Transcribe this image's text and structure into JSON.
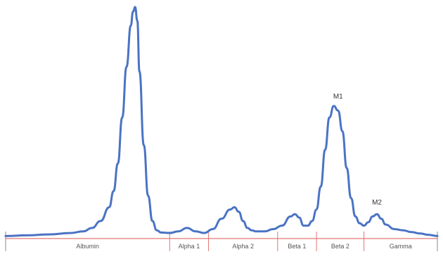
{
  "chart_data": {
    "type": "line",
    "title": "",
    "xlabel": "",
    "ylabel": "",
    "ylim": [
      0,
      100
    ],
    "grid": false,
    "legend": "none",
    "line_color": "#4a73c4",
    "baseline_color": "#e57373",
    "segments": [
      {
        "label": "Albumin",
        "start": 0.0,
        "end": 0.38
      },
      {
        "label": "Alpha 1",
        "start": 0.38,
        "end": 0.47
      },
      {
        "label": "Alpha 2",
        "start": 0.47,
        "end": 0.63
      },
      {
        "label": "Beta 1",
        "start": 0.63,
        "end": 0.72
      },
      {
        "label": "Beta 2",
        "start": 0.72,
        "end": 0.83
      },
      {
        "label": "Gamma",
        "start": 0.83,
        "end": 1.0
      }
    ],
    "peak_labels": [
      {
        "label": "M1",
        "x": 0.77,
        "y": 59
      },
      {
        "label": "M2",
        "x": 0.86,
        "y": 13
      }
    ],
    "series": [
      {
        "x": [
          0.0,
          0.05,
          0.1,
          0.15,
          0.18,
          0.2,
          0.22,
          0.24,
          0.25,
          0.26,
          0.27,
          0.28,
          0.29,
          0.295,
          0.3,
          0.305,
          0.31,
          0.32,
          0.33,
          0.34,
          0.35,
          0.36,
          0.38,
          0.4,
          0.42,
          0.44,
          0.46,
          0.48,
          0.5,
          0.52,
          0.53,
          0.54,
          0.55,
          0.56,
          0.57,
          0.58,
          0.6,
          0.62,
          0.64,
          0.66,
          0.67,
          0.68,
          0.69,
          0.7,
          0.71,
          0.72,
          0.73,
          0.74,
          0.75,
          0.76,
          0.77,
          0.78,
          0.79,
          0.8,
          0.81,
          0.82,
          0.83,
          0.84,
          0.85,
          0.86,
          0.87,
          0.88,
          0.9,
          0.92,
          0.94,
          0.96,
          0.98,
          1.0
        ],
        "y": [
          0.5,
          0.8,
          1.2,
          1.8,
          2.5,
          4,
          7,
          13,
          20,
          32,
          52,
          74,
          92,
          98,
          100,
          94,
          72,
          40,
          18,
          7,
          3,
          2,
          1.8,
          2.5,
          4,
          2.5,
          1.8,
          3.5,
          8,
          12,
          13,
          11,
          7,
          4,
          3,
          2.5,
          2.5,
          3.5,
          5,
          9,
          10,
          8.5,
          5,
          5,
          7,
          12,
          22,
          38,
          52,
          57,
          55,
          46,
          30,
          17,
          9,
          6,
          5,
          6.5,
          9,
          10,
          8,
          5.5,
          3.5,
          3,
          2.2,
          1.6,
          1.0,
          0.5
        ]
      }
    ]
  }
}
